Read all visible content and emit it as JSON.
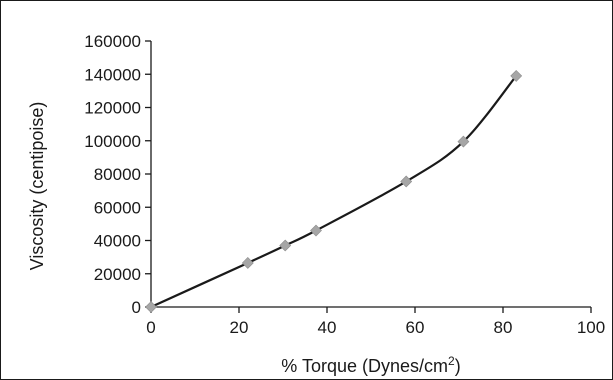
{
  "chart_data": {
    "type": "line",
    "xlabel": "% Torque (Dynes/cm",
    "xlabel_sup": "2",
    "xlabel_tail": ")",
    "ylabel": "Viscosity (centipoise)",
    "xlim": [
      0,
      100
    ],
    "ylim": [
      0,
      160000
    ],
    "x_ticks": [
      0,
      20,
      40,
      60,
      80,
      100
    ],
    "y_ticks": [
      0,
      20000,
      40000,
      60000,
      80000,
      100000,
      120000,
      140000,
      160000
    ],
    "grid": false,
    "line_color": "#1a1a1a",
    "marker_color": "#a6a6a6",
    "marker": "diamond",
    "series": [
      {
        "x": [
          0,
          22,
          30.5,
          37.5,
          58,
          71,
          83
        ],
        "y": [
          0,
          26500,
          37000,
          46000,
          75500,
          99500,
          139000
        ]
      }
    ]
  }
}
